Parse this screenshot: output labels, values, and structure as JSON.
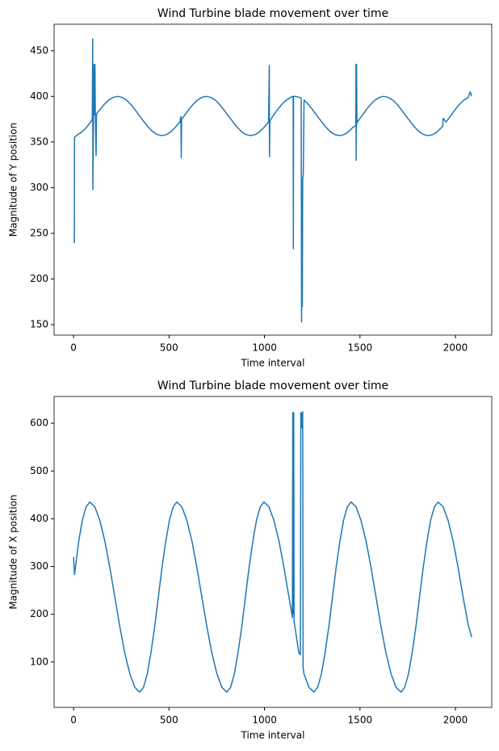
{
  "chart_data": [
    {
      "type": "line",
      "title": "Wind Turbine blade movement over time",
      "xlabel": "Time interval",
      "ylabel": "Magnitude of Y position",
      "color": "#1f77b4",
      "x": [
        0,
        4,
        5,
        21,
        44,
        67,
        90,
        98,
        100,
        101,
        104,
        107,
        110,
        112,
        114,
        118,
        120,
        137,
        160,
        184,
        207,
        230,
        253,
        277,
        300,
        323,
        346,
        370,
        393,
        416,
        439,
        463,
        486,
        509,
        532,
        556,
        562,
        564,
        566,
        579,
        602,
        625,
        649,
        672,
        695,
        718,
        742,
        765,
        788,
        811,
        835,
        858,
        881,
        904,
        928,
        951,
        974,
        997,
        1021,
        1025,
        1026,
        1028,
        1044,
        1067,
        1090,
        1114,
        1137,
        1150,
        1151,
        1152,
        1160,
        1183,
        1192,
        1194,
        1196,
        1198,
        1200,
        1203,
        1207,
        1230,
        1253,
        1276,
        1300,
        1323,
        1346,
        1369,
        1393,
        1416,
        1439,
        1462,
        1478,
        1479,
        1480,
        1482,
        1484,
        1486,
        1509,
        1532,
        1555,
        1579,
        1602,
        1625,
        1648,
        1672,
        1695,
        1718,
        1741,
        1765,
        1788,
        1811,
        1834,
        1858,
        1881,
        1904,
        1927,
        1933,
        1936,
        1951,
        1974,
        1997,
        2020,
        2044,
        2067,
        2077,
        2085
      ],
      "values": [
        240,
        240,
        355,
        358.1,
        361.1,
        365.9,
        371.9,
        375,
        463,
        298,
        375,
        435,
        380,
        435,
        378.5,
        335,
        381,
        385.1,
        391.1,
        395.9,
        398.9,
        400,
        398.9,
        395.9,
        391.1,
        385.1,
        378.5,
        371.9,
        365.9,
        361.1,
        358.1,
        357,
        358.1,
        361.1,
        365.9,
        371.9,
        378,
        333,
        375,
        378.5,
        385.1,
        391.1,
        395.9,
        398.9,
        400,
        398.9,
        395.9,
        391.1,
        385.1,
        378.5,
        371.9,
        365.9,
        361.1,
        358.1,
        357,
        358.1,
        361.1,
        365.9,
        371.9,
        434,
        334,
        373,
        378.5,
        385.1,
        391.1,
        395.9,
        398.9,
        400,
        233,
        400,
        400,
        398.9,
        398,
        153,
        310,
        170,
        310,
        315,
        395.9,
        391.1,
        385.1,
        378.5,
        371.9,
        365.9,
        361.1,
        358.1,
        357,
        358.1,
        361.1,
        365.9,
        368,
        435,
        330,
        435,
        370,
        371.9,
        378.5,
        385.1,
        391.1,
        395.9,
        398.9,
        400,
        398.9,
        395.9,
        391.1,
        385.1,
        378.5,
        371.9,
        365.9,
        361.1,
        358.1,
        357,
        358.1,
        361.1,
        365.9,
        367,
        376,
        371.9,
        378.5,
        385.1,
        391.1,
        395.9,
        398.9,
        405,
        400
      ],
      "xlim": [
        -102,
        2190
      ],
      "ylim": [
        138.5,
        479
      ],
      "xticks": [
        0,
        500,
        1000,
        1500,
        2000
      ],
      "yticks": [
        150,
        200,
        250,
        300,
        350,
        400,
        450
      ]
    },
    {
      "type": "line",
      "title": "Wind Turbine blade movement over time",
      "xlabel": "Time interval",
      "ylabel": "Magnitude of X position",
      "color": "#1f77b4",
      "x": [
        0,
        5,
        27,
        46,
        66,
        85,
        111,
        137,
        164,
        190,
        216,
        242,
        268,
        295,
        321,
        347,
        366,
        386,
        405,
        425,
        444,
        463,
        483,
        502,
        522,
        541,
        567,
        593,
        620,
        646,
        672,
        698,
        724,
        751,
        777,
        803,
        822,
        842,
        861,
        881,
        900,
        919,
        939,
        958,
        978,
        997,
        1023,
        1049,
        1076,
        1102,
        1128,
        1146,
        1148,
        1150,
        1151,
        1153,
        1155,
        1180,
        1188,
        1190,
        1193,
        1196,
        1198,
        1200,
        1202,
        1207,
        1233,
        1259,
        1278,
        1298,
        1317,
        1337,
        1356,
        1375,
        1395,
        1414,
        1434,
        1453,
        1479,
        1505,
        1532,
        1558,
        1584,
        1610,
        1636,
        1663,
        1689,
        1715,
        1734,
        1754,
        1773,
        1793,
        1812,
        1831,
        1851,
        1870,
        1890,
        1909,
        1935,
        1961,
        1988,
        2014,
        2040,
        2066,
        2085
      ],
      "values": [
        320,
        283,
        353,
        397,
        425.2,
        435,
        425.2,
        397,
        353,
        297.5,
        236,
        174.5,
        119,
        75,
        46.8,
        37,
        46.8,
        75,
        119,
        174.5,
        236,
        297.5,
        353,
        397,
        425.2,
        435,
        425.2,
        397,
        353,
        297.5,
        236,
        174.5,
        119,
        75,
        46.8,
        37,
        46.8,
        75,
        119,
        174.5,
        236,
        297.5,
        353,
        397,
        425.2,
        435,
        425.2,
        397,
        353,
        297.5,
        236,
        193,
        622,
        620,
        200,
        622,
        185,
        119,
        115,
        622,
        590,
        622,
        590,
        624,
        88,
        75,
        46.8,
        37,
        46.8,
        75,
        119,
        174.5,
        236,
        297.5,
        353,
        397,
        425.2,
        435,
        425.2,
        397,
        353,
        297.5,
        236,
        174.5,
        119,
        75,
        46.8,
        37,
        46.8,
        75,
        119,
        174.5,
        236,
        297.5,
        353,
        397,
        425.2,
        435,
        425.2,
        397,
        353,
        297.5,
        236,
        180,
        152
      ],
      "xlim": [
        -102,
        2190
      ],
      "ylim": [
        5,
        656
      ],
      "xticks": [
        0,
        500,
        1000,
        1500,
        2000
      ],
      "yticks": [
        100,
        200,
        300,
        400,
        500,
        600
      ]
    }
  ]
}
